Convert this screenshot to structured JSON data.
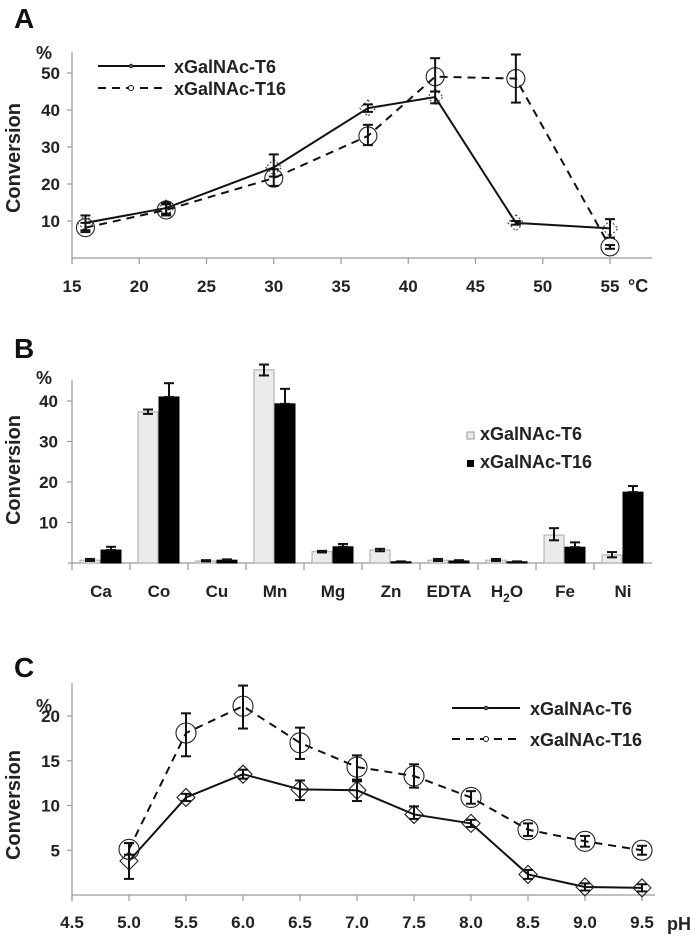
{
  "figure": {
    "panels": [
      "A",
      "B",
      "C"
    ]
  },
  "chart_data": [
    {
      "id": "A",
      "type": "line",
      "panel_label": "A",
      "title": "",
      "xlabel": "°C",
      "ylabel": "Conversion",
      "yunit": "%",
      "xlim": [
        15,
        55
      ],
      "ylim": [
        0,
        55
      ],
      "xticks": [
        15,
        20,
        25,
        30,
        35,
        40,
        45,
        50,
        55
      ],
      "yticks": [
        10,
        20,
        30,
        40,
        50
      ],
      "grid": false,
      "legend_position": "top-left",
      "x": [
        16,
        22,
        30,
        37,
        42,
        48,
        55
      ],
      "series": [
        {
          "name": "xGalNAc-T6",
          "style": "solid",
          "marker": "diamond",
          "values": [
            9.5,
            13.5,
            24.5,
            40.5,
            43.5,
            9.5,
            8
          ],
          "err_low": [
            7.5,
            12,
            22,
            39.5,
            41.8,
            9,
            5.5
          ],
          "err_high": [
            11.5,
            15,
            28,
            41.5,
            45,
            10,
            10.5
          ]
        },
        {
          "name": "xGalNAc-T16",
          "style": "dashed",
          "marker": "circle",
          "values": [
            8.2,
            13,
            21.6,
            33,
            49,
            48.5,
            3
          ],
          "err_low": [
            7,
            11.5,
            19.5,
            30.5,
            45,
            42,
            2.5
          ],
          "err_high": [
            9.5,
            14.5,
            24,
            36,
            54,
            55,
            3.5
          ]
        }
      ]
    },
    {
      "id": "B",
      "type": "bar",
      "panel_label": "B",
      "title": "",
      "xlabel": "",
      "ylabel": "Conversion",
      "yunit": "%",
      "ylim": [
        0,
        45
      ],
      "yticks": [
        10,
        20,
        30,
        40
      ],
      "grid": false,
      "legend_position": "top-right",
      "categories": [
        "Ca",
        "Co",
        "Cu",
        "Mn",
        "Mg",
        "Zn",
        "EDTA",
        "H2O",
        "Fe",
        "Ni"
      ],
      "category_display": [
        "Ca",
        "Co",
        "Cu",
        "Mn",
        "Mg",
        "Zn",
        "EDTA",
        "H",
        "Fe",
        "Ni"
      ],
      "series": [
        {
          "name": "xGalNAc-T6",
          "color": "#ebebeb",
          "values": [
            0.7,
            37.3,
            0.5,
            47.7,
            2.8,
            3.2,
            0.7,
            0.7,
            6.9,
            2.0
          ],
          "err_low": [
            0.5,
            36.8,
            0.4,
            46.3,
            2.6,
            2.9,
            0.5,
            0.5,
            5.6,
            1.4
          ],
          "err_high": [
            1.0,
            37.9,
            0.7,
            49.0,
            3.0,
            3.5,
            1.0,
            1.0,
            8.6,
            2.7
          ]
        },
        {
          "name": "xGalNAc-T16",
          "color": "#000000",
          "values": [
            3.2,
            41.0,
            0.7,
            39.3,
            4.0,
            0.3,
            0.5,
            0.3,
            3.9,
            17.5
          ],
          "err_low": [
            3.2,
            41.0,
            0.7,
            39.3,
            4.0,
            0.3,
            0.5,
            0.3,
            3.9,
            17.5
          ],
          "err_high": [
            4.0,
            44.4,
            0.9,
            43.0,
            4.7,
            0.4,
            0.7,
            0.4,
            5.1,
            19.0
          ]
        }
      ]
    },
    {
      "id": "C",
      "type": "line",
      "panel_label": "C",
      "title": "",
      "xlabel": "pH",
      "ylabel": "Conversion",
      "yunit": "%",
      "xlim": [
        4.5,
        9.5
      ],
      "ylim": [
        0,
        23
      ],
      "xticks": [
        "4.5",
        "5.0",
        "5.5",
        "6.0",
        "6.5",
        "7.0",
        "7.5",
        "8.0",
        "8.5",
        "9.0",
        "9.5"
      ],
      "yticks": [
        5,
        10,
        15,
        20
      ],
      "grid": false,
      "legend_position": "top-right",
      "x": [
        5.0,
        5.5,
        6.0,
        6.5,
        7.0,
        7.5,
        8.0,
        8.5,
        9.0,
        9.5
      ],
      "series": [
        {
          "name": "xGalNAc-T6",
          "style": "solid",
          "marker": "diamond",
          "values": [
            3.8,
            10.9,
            13.5,
            11.8,
            11.7,
            9.0,
            8.0,
            2.3,
            0.9,
            0.8
          ],
          "err_low": [
            1.8,
            10.5,
            13.0,
            10.6,
            10.5,
            8.5,
            7.6,
            1.8,
            0.5,
            0.4
          ],
          "err_high": [
            5.8,
            11.3,
            14.0,
            12.8,
            12.7,
            9.9,
            8.4,
            2.8,
            1.3,
            1.2
          ]
        },
        {
          "name": "xGalNAc-T16",
          "style": "dashed",
          "marker": "circle",
          "values": [
            5.1,
            18.1,
            21.1,
            17.0,
            14.3,
            13.3,
            10.9,
            7.3,
            6.0,
            5.0
          ],
          "err_low": [
            4.5,
            15.5,
            18.6,
            15.2,
            12.9,
            12.0,
            10.2,
            6.6,
            5.4,
            4.5
          ],
          "err_high": [
            5.8,
            20.3,
            23.4,
            18.7,
            15.6,
            14.6,
            11.6,
            8.0,
            6.6,
            5.5
          ]
        }
      ]
    }
  ]
}
